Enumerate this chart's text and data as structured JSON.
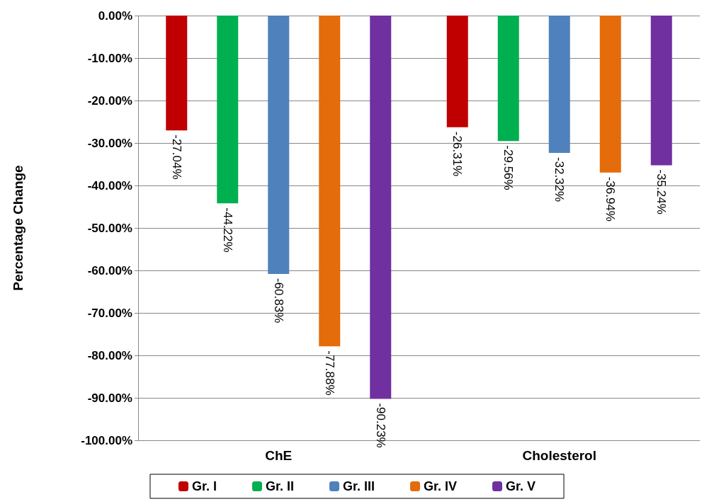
{
  "chart_data": {
    "type": "bar",
    "ylabel": "Percentage Change",
    "categories": [
      "ChE",
      "Cholesterol"
    ],
    "series": [
      {
        "name": "Gr. I",
        "color": "#c00000",
        "values": [
          -27.04,
          -26.31
        ],
        "value_labels": [
          "-27.04%",
          "-26.31%"
        ]
      },
      {
        "name": "Gr. II",
        "color": "#00b050",
        "values": [
          -44.22,
          -29.56
        ],
        "value_labels": [
          "-44.22%",
          "-29.56%"
        ]
      },
      {
        "name": "Gr. III",
        "color": "#4f81bd",
        "values": [
          -60.83,
          -32.32
        ],
        "value_labels": [
          "-60.83%",
          "-32.32%"
        ]
      },
      {
        "name": "Gr. IV",
        "color": "#e46c0a",
        "values": [
          -77.88,
          -36.94
        ],
        "value_labels": [
          "-77.88%",
          "-36.94%"
        ]
      },
      {
        "name": "Gr. V",
        "color": "#7030a0",
        "values": [
          -90.23,
          -35.24
        ],
        "value_labels": [
          "-90.23%",
          "-35.24%"
        ]
      }
    ],
    "ylim": [
      -100,
      0
    ],
    "yticks": [
      {
        "value": -100,
        "label": "-100.00%"
      },
      {
        "value": -90,
        "label": "-90.00%"
      },
      {
        "value": -80,
        "label": "-80.00%"
      },
      {
        "value": -70,
        "label": "-70.00%"
      },
      {
        "value": -60,
        "label": "-60.00%"
      },
      {
        "value": -50,
        "label": "-50.00%"
      },
      {
        "value": -40,
        "label": "-40.00%"
      },
      {
        "value": -30,
        "label": "-30.00%"
      },
      {
        "value": -20,
        "label": "-20.00%"
      },
      {
        "value": -10,
        "label": "-10.00%"
      },
      {
        "value": 0,
        "label": "0.00%"
      }
    ],
    "grid": true,
    "legend": "bottom"
  }
}
